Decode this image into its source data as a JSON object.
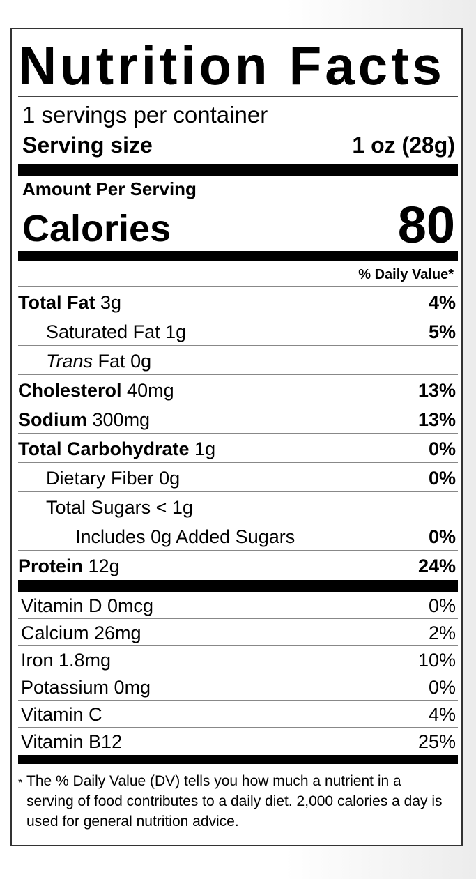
{
  "title": "Nutrition Facts",
  "servings_per_container": "1 servings per container",
  "serving_size": {
    "label": "Serving size",
    "value": "1 oz (28g)"
  },
  "amount_per_serving": "Amount Per Serving",
  "calories": {
    "label": "Calories",
    "value": "80"
  },
  "daily_value_header": "% Daily Value*",
  "nutrients": [
    {
      "name": "Total Fat",
      "amount": "3g",
      "dv": "4%"
    },
    {
      "name": "Saturated Fat",
      "amount": "1g",
      "dv": "5%"
    },
    {
      "name_italic": "Trans",
      "name": "Fat",
      "amount": "0g",
      "dv": ""
    },
    {
      "name": "Cholesterol",
      "amount": "40mg",
      "dv": "13%"
    },
    {
      "name": "Sodium",
      "amount": "300mg",
      "dv": "13%"
    },
    {
      "name": "Total Carbohydrate",
      "amount": "1g",
      "dv": "0%"
    },
    {
      "name": "Dietary Fiber",
      "amount": "0g",
      "dv": "0%"
    },
    {
      "name": "Total Sugars",
      "amount": "< 1g",
      "dv": ""
    },
    {
      "name": "Includes 0g Added Sugars",
      "amount": "",
      "dv": "0%"
    },
    {
      "name": "Protein",
      "amount": "12g",
      "dv": "24%"
    }
  ],
  "vitamins": [
    {
      "label": "Vitamin D 0mcg",
      "dv": "0%"
    },
    {
      "label": "Calcium 26mg",
      "dv": "2%"
    },
    {
      "label": "Iron 1.8mg",
      "dv": "10%"
    },
    {
      "label": "Potassium 0mg",
      "dv": "0%"
    },
    {
      "label": "Vitamin C",
      "dv": "4%"
    },
    {
      "label": "Vitamin B12",
      "dv": "25%"
    }
  ],
  "footnote": {
    "star": "*",
    "text": "The % Daily Value (DV) tells you how much a nutrient in a serving of food contributes to a daily diet. 2,000 calories a day is used for general nutrition advice."
  }
}
